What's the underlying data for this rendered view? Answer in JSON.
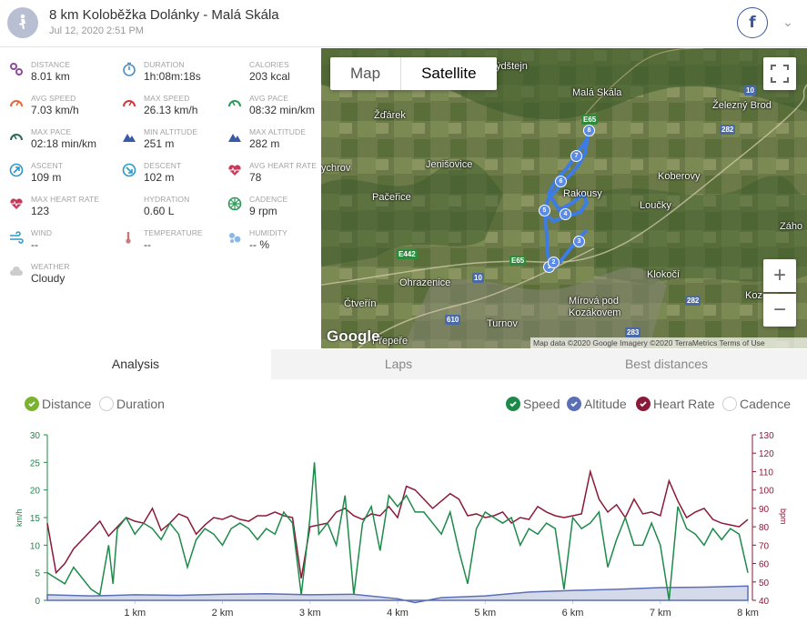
{
  "header": {
    "title": "8 km Koloběžka Dolánky - Malá Skála",
    "date": "Jul 12, 2020 2:51 PM",
    "avatar_icon": "scooter-person-icon",
    "facebook_label": "f"
  },
  "stats": [
    {
      "name": "distance",
      "label": "DISTANCE",
      "value": "8.01 km",
      "icon": "distance-icon",
      "color": "#8e4a9c"
    },
    {
      "name": "duration",
      "label": "DURATION",
      "value": "1h:08m:18s",
      "icon": "stopwatch-icon",
      "color": "#4a90c8"
    },
    {
      "name": "calories",
      "label": "CALORIES",
      "value": "203 kcal",
      "icon": "flame-icon",
      "color": "#e8683a"
    },
    {
      "name": "avg-speed",
      "label": "AVG SPEED",
      "value": "7.03 km/h",
      "icon": "speedometer-icon",
      "color": "#e8683a"
    },
    {
      "name": "max-speed",
      "label": "MAX SPEED",
      "value": "26.13 km/h",
      "icon": "speedometer-icon",
      "color": "#d43a3a"
    },
    {
      "name": "avg-pace",
      "label": "AVG PACE",
      "value": "08:32 min/km",
      "icon": "pace-icon",
      "color": "#2e9a5a"
    },
    {
      "name": "max-pace",
      "label": "MAX PACE",
      "value": "02:18 min/km",
      "icon": "pace-icon",
      "color": "#2e6a5a"
    },
    {
      "name": "min-altitude",
      "label": "MIN ALTITUDE",
      "value": "251 m",
      "icon": "mountain-icon",
      "color": "#3a5aa8"
    },
    {
      "name": "max-altitude",
      "label": "MAX ALTITUDE",
      "value": "282 m",
      "icon": "mountain-icon",
      "color": "#3a5aa8"
    },
    {
      "name": "ascent",
      "label": "ASCENT",
      "value": "109 m",
      "icon": "ascent-icon",
      "color": "#2a9ac8"
    },
    {
      "name": "descent",
      "label": "DESCENT",
      "value": "102 m",
      "icon": "descent-icon",
      "color": "#2a9ac8"
    },
    {
      "name": "avg-heart-rate",
      "label": "AVG HEART RATE",
      "value": "78",
      "icon": "heart-pulse-icon",
      "color": "#c83a5a"
    },
    {
      "name": "max-heart-rate",
      "label": "MAX HEART RATE",
      "value": "123",
      "icon": "heart-pulse-icon",
      "color": "#c83a5a"
    },
    {
      "name": "hydration",
      "label": "HYDRATION",
      "value": "0.60 L",
      "icon": "water-drops-icon",
      "color": "#6aa8e8"
    },
    {
      "name": "cadence",
      "label": "CADENCE",
      "value": "9 rpm",
      "icon": "cadence-wheel-icon",
      "color": "#2e9a5a"
    },
    {
      "name": "wind",
      "label": "WIND",
      "value": "--",
      "icon": "wind-icon",
      "color": "#2a9ac8"
    },
    {
      "name": "temperature",
      "label": "TEMPERATURE",
      "value": "--",
      "icon": "thermometer-icon",
      "color": "#c87a7a"
    },
    {
      "name": "humidity",
      "label": "HUMIDITY",
      "value": "-- %",
      "icon": "humidity-icon",
      "color": "#8ab8e8"
    },
    {
      "name": "weather",
      "label": "WEATHER",
      "value": "Cloudy",
      "icon": "cloud-icon",
      "color": "#cccccc"
    }
  ],
  "map": {
    "map_button": "Map",
    "satellite_button": "Satellite",
    "zoom_in": "+",
    "zoom_out": "−",
    "google_logo": "Google",
    "attribution": "Map data ©2020 Google Imagery ©2020 TerraMetrics    Terms of Use",
    "places": [
      "Malá Skála",
      "Žďárek",
      "Železný Brod",
      "ychrov",
      "Jenišovice",
      "Koberovy",
      "Pačeřice",
      "Rakousy",
      "Loučky",
      "Záho",
      "Klokočí",
      "Ohrazenice",
      "Koz",
      "Čtveřín",
      "Mírová pod",
      "Kozákovem",
      "Turnov",
      "Přepeře",
      "ýdštejn"
    ],
    "roads": [
      "E65",
      "10",
      "282",
      "E442",
      "E65",
      "10",
      "610",
      "282",
      "283"
    ],
    "waypoints": [
      "1",
      "2",
      "3",
      "4",
      "5",
      "6",
      "7",
      "8"
    ]
  },
  "tabs": [
    {
      "label": "Analysis",
      "active": true
    },
    {
      "label": "Laps",
      "active": false
    },
    {
      "label": "Best distances",
      "active": false
    }
  ],
  "axis_toggle": [
    {
      "label": "Distance",
      "checked": true,
      "color": "#7ab32e"
    },
    {
      "label": "Duration",
      "checked": false,
      "color": "#cccccc"
    }
  ],
  "series_toggle": [
    {
      "label": "Speed",
      "checked": true,
      "color": "#1e8a4a"
    },
    {
      "label": "Altitude",
      "checked": true,
      "color": "#5b6fb5"
    },
    {
      "label": "Heart Rate",
      "checked": true,
      "color": "#8b1a3a"
    },
    {
      "label": "Cadence",
      "checked": false,
      "color": "#cccccc"
    }
  ],
  "chart_data": {
    "type": "line",
    "xlabel": "",
    "x_ticks": [
      "1 km",
      "2 km",
      "3 km",
      "4 km",
      "5 km",
      "6 km",
      "7 km",
      "8 km"
    ],
    "xlim": [
      0,
      8.01
    ],
    "y_left": {
      "label": "km/h",
      "ticks": [
        "0",
        "5",
        "10",
        "15",
        "20",
        "25",
        "30"
      ],
      "ylim": [
        0,
        30
      ],
      "color": "#1e8a4a"
    },
    "y_right": {
      "label": "bpm",
      "ticks": [
        "40",
        "50",
        "60",
        "70",
        "80",
        "90",
        "100",
        "110",
        "120",
        "130"
      ],
      "ylim": [
        40,
        130
      ],
      "color": "#8b1a3a"
    },
    "series": [
      {
        "name": "Speed",
        "color": "#1e8a4a",
        "axis": "left",
        "x": [
          0.0,
          0.1,
          0.2,
          0.3,
          0.5,
          0.6,
          0.7,
          0.75,
          0.8,
          0.9,
          1.0,
          1.1,
          1.2,
          1.3,
          1.4,
          1.5,
          1.6,
          1.7,
          1.8,
          1.9,
          2.0,
          2.1,
          2.2,
          2.3,
          2.4,
          2.5,
          2.6,
          2.7,
          2.8,
          2.9,
          3.0,
          3.05,
          3.1,
          3.2,
          3.3,
          3.4,
          3.5,
          3.6,
          3.7,
          3.8,
          3.9,
          4.0,
          4.1,
          4.2,
          4.3,
          4.4,
          4.5,
          4.6,
          4.7,
          4.8,
          4.9,
          5.0,
          5.1,
          5.2,
          5.3,
          5.4,
          5.5,
          5.6,
          5.7,
          5.8,
          5.9,
          6.0,
          6.1,
          6.2,
          6.3,
          6.4,
          6.5,
          6.6,
          6.7,
          6.8,
          6.9,
          7.0,
          7.1,
          7.2,
          7.3,
          7.4,
          7.5,
          7.6,
          7.7,
          7.8,
          7.9,
          8.0
        ],
        "y": [
          5,
          4,
          3,
          6,
          2,
          1,
          10,
          3,
          13,
          15,
          12,
          14,
          13,
          11,
          14,
          12,
          6,
          11,
          13,
          12,
          10,
          13,
          14,
          13,
          11,
          13,
          12,
          16,
          14,
          1,
          15,
          25,
          12,
          14,
          10,
          19,
          1,
          14,
          17,
          9,
          19,
          17,
          19,
          16,
          16,
          14,
          12,
          16,
          9,
          3,
          13,
          16,
          15,
          14,
          15,
          10,
          13,
          12,
          14,
          13,
          2,
          15,
          13,
          14,
          16,
          6,
          11,
          15,
          10,
          10,
          14,
          10,
          0,
          17,
          13,
          12,
          10,
          13,
          11,
          13,
          12,
          5
        ]
      },
      {
        "name": "Altitude",
        "color": "#5b6fb5",
        "axis": "left",
        "x": [
          0.0,
          0.5,
          1.0,
          1.5,
          2.0,
          2.5,
          3.0,
          3.5,
          4.0,
          4.2,
          4.5,
          5.0,
          5.5,
          6.0,
          6.5,
          7.0,
          7.5,
          8.0
        ],
        "y": [
          1.0,
          0.8,
          1.0,
          0.9,
          1.1,
          1.2,
          1.0,
          1.1,
          0.3,
          -0.4,
          0.5,
          0.8,
          1.5,
          1.8,
          2.0,
          2.3,
          2.4,
          2.6
        ]
      },
      {
        "name": "Heart Rate",
        "color": "#8b1a3a",
        "axis": "right",
        "x": [
          0.0,
          0.1,
          0.2,
          0.3,
          0.5,
          0.6,
          0.7,
          0.8,
          0.9,
          1.0,
          1.1,
          1.2,
          1.3,
          1.4,
          1.5,
          1.6,
          1.7,
          1.8,
          1.9,
          2.0,
          2.1,
          2.2,
          2.3,
          2.4,
          2.5,
          2.6,
          2.7,
          2.8,
          2.9,
          3.0,
          3.1,
          3.2,
          3.3,
          3.4,
          3.5,
          3.6,
          3.7,
          3.8,
          3.9,
          4.0,
          4.1,
          4.2,
          4.3,
          4.4,
          4.5,
          4.6,
          4.7,
          4.8,
          4.9,
          5.0,
          5.1,
          5.2,
          5.3,
          5.4,
          5.5,
          5.6,
          5.7,
          5.8,
          5.9,
          6.0,
          6.1,
          6.2,
          6.3,
          6.4,
          6.5,
          6.6,
          6.7,
          6.8,
          6.9,
          7.0,
          7.1,
          7.2,
          7.3,
          7.4,
          7.5,
          7.6,
          7.7,
          7.8,
          7.9,
          8.0
        ],
        "y": [
          82,
          55,
          60,
          68,
          78,
          83,
          75,
          80,
          85,
          83,
          82,
          90,
          78,
          82,
          87,
          85,
          76,
          81,
          85,
          84,
          86,
          84,
          83,
          86,
          86,
          88,
          86,
          85,
          52,
          80,
          81,
          82,
          88,
          90,
          86,
          84,
          87,
          86,
          91,
          85,
          102,
          100,
          95,
          90,
          94,
          98,
          95,
          86,
          87,
          85,
          86,
          88,
          82,
          85,
          84,
          91,
          88,
          86,
          85,
          86,
          87,
          110,
          95,
          88,
          92,
          85,
          95,
          87,
          88,
          86,
          105,
          94,
          85,
          88,
          90,
          84,
          82,
          81,
          80,
          84
        ]
      }
    ]
  }
}
